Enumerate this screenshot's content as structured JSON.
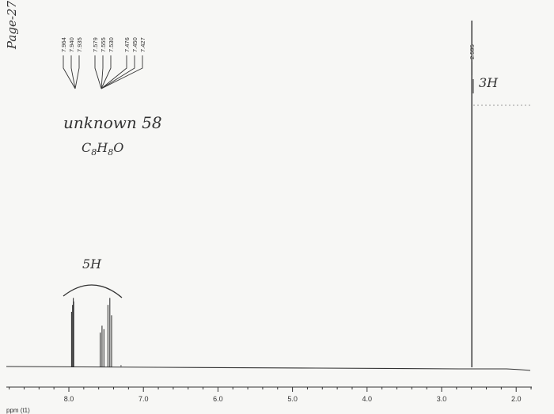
{
  "page_note": "Page-27",
  "chart_data": {
    "type": "line",
    "title": "",
    "xlabel": "ppm (t1)",
    "ylabel": "",
    "x_reversed": true,
    "xlim": [
      1.6,
      8.9
    ],
    "x_ticks": [
      8.0,
      7.0,
      6.0,
      5.0,
      4.0,
      3.0,
      2.0
    ],
    "x_tick_labels": [
      "8.0",
      "7.0",
      "6.0",
      "5.0",
      "4.0",
      "3.0",
      "2.0"
    ],
    "peak_labels_left": [
      "7.964",
      "7.940",
      "7.935",
      "7.579",
      "7.555",
      "7.530",
      "7.476",
      "7.450",
      "7.427"
    ],
    "peak_label_right": "2.595",
    "peaks": [
      {
        "ppm": 7.964,
        "height": 0.16
      },
      {
        "ppm": 7.95,
        "height": 0.18
      },
      {
        "ppm": 7.94,
        "height": 0.2
      },
      {
        "ppm": 7.935,
        "height": 0.19
      },
      {
        "ppm": 7.579,
        "height": 0.1
      },
      {
        "ppm": 7.555,
        "height": 0.12
      },
      {
        "ppm": 7.53,
        "height": 0.11
      },
      {
        "ppm": 7.476,
        "height": 0.18
      },
      {
        "ppm": 7.45,
        "height": 0.2
      },
      {
        "ppm": 7.427,
        "height": 0.15
      },
      {
        "ppm": 2.595,
        "height": 1.0
      }
    ],
    "annotations": {
      "compound_name": "unknown 58",
      "formula_c": "C",
      "formula_c_sub": "8",
      "formula_h": "H",
      "formula_h_sub": "8",
      "formula_o": "O",
      "integration_aromatic": "5H",
      "integration_methyl": "3H"
    }
  }
}
